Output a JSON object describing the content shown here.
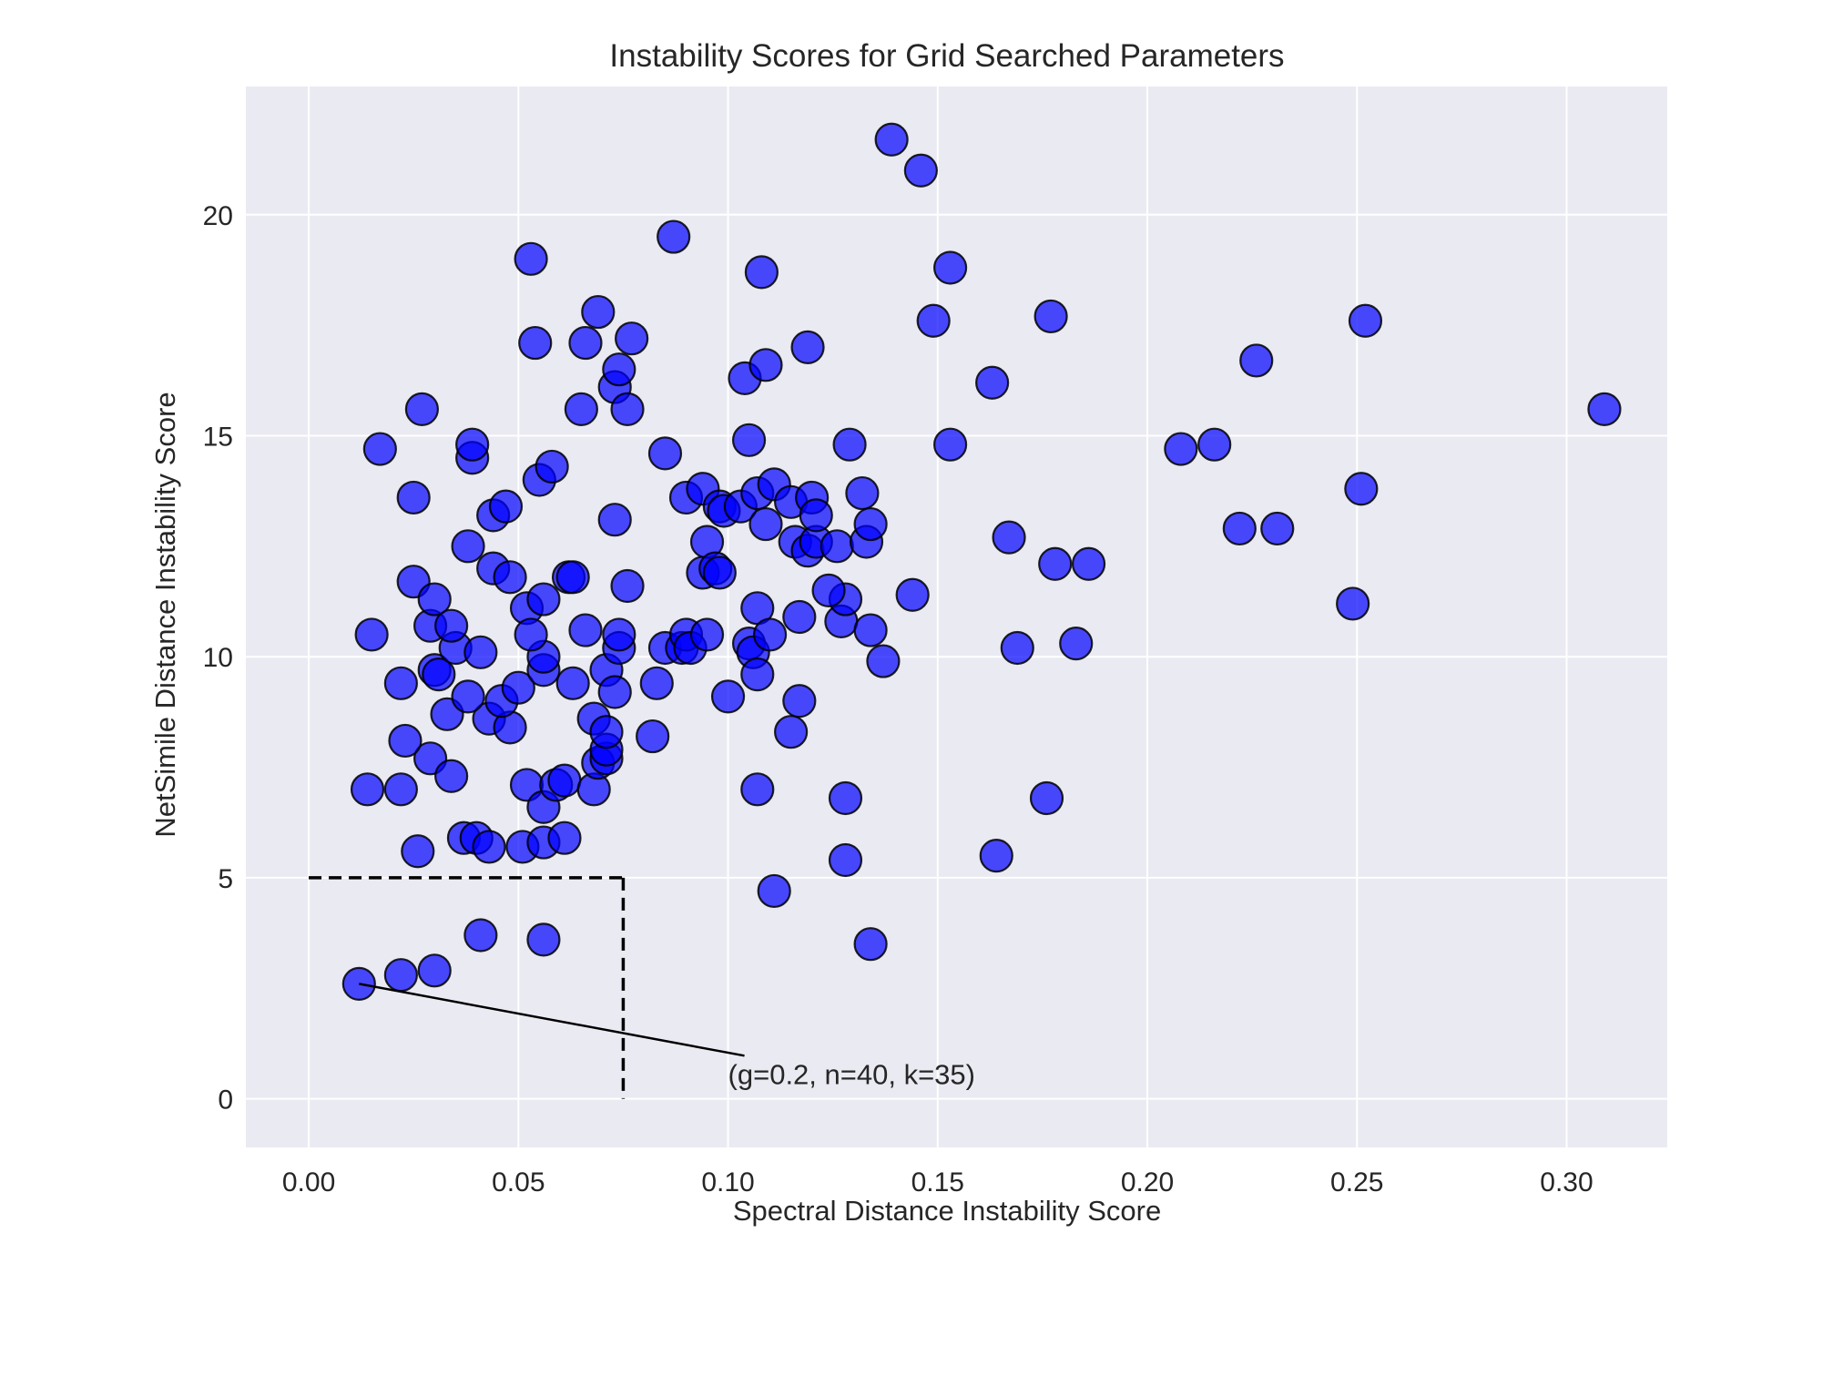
{
  "chart_data": {
    "type": "scatter",
    "title": "Instability Scores for Grid Searched Parameters",
    "xlabel": "Spectral Distance Instability Score",
    "ylabel": "NetSimile Distance Instability Score",
    "xlim": [
      -0.015,
      0.324
    ],
    "ylim": [
      -1.1,
      22.9
    ],
    "xticks": [
      0.0,
      0.05,
      0.1,
      0.15,
      0.2,
      0.25,
      0.3
    ],
    "xtick_labels": [
      "0.00",
      "0.05",
      "0.10",
      "0.15",
      "0.20",
      "0.25",
      "0.30"
    ],
    "yticks": [
      0,
      5,
      10,
      15,
      20
    ],
    "ytick_labels": [
      "0",
      "5",
      "10",
      "15",
      "20"
    ],
    "grid": true,
    "background_color": "#EAEAF2",
    "marker_color": "#0000FF",
    "marker_edge_color": "#000000",
    "threshold_box": {
      "x": 0.075,
      "y": 5
    },
    "annotation": {
      "text": "(g=0.2, n=40, k=35)",
      "point": [
        0.012,
        2.6
      ],
      "text_position": [
        0.1,
        0.5
      ]
    },
    "points": [
      [
        0.012,
        2.6
      ],
      [
        0.022,
        2.8
      ],
      [
        0.03,
        2.9
      ],
      [
        0.041,
        3.7
      ],
      [
        0.056,
        3.6
      ],
      [
        0.134,
        3.5
      ],
      [
        0.111,
        4.7
      ],
      [
        0.128,
        5.4
      ],
      [
        0.164,
        5.5
      ],
      [
        0.026,
        5.6
      ],
      [
        0.037,
        5.9
      ],
      [
        0.04,
        5.9
      ],
      [
        0.043,
        5.7
      ],
      [
        0.051,
        5.7
      ],
      [
        0.056,
        5.8
      ],
      [
        0.061,
        5.9
      ],
      [
        0.014,
        7.0
      ],
      [
        0.022,
        7.0
      ],
      [
        0.029,
        7.7
      ],
      [
        0.034,
        7.3
      ],
      [
        0.052,
        7.1
      ],
      [
        0.056,
        6.6
      ],
      [
        0.059,
        7.1
      ],
      [
        0.061,
        7.2
      ],
      [
        0.068,
        7.0
      ],
      [
        0.069,
        7.6
      ],
      [
        0.071,
        7.7
      ],
      [
        0.071,
        7.9
      ],
      [
        0.107,
        7.0
      ],
      [
        0.128,
        6.8
      ],
      [
        0.176,
        6.8
      ],
      [
        0.023,
        8.1
      ],
      [
        0.033,
        8.7
      ],
      [
        0.043,
        8.6
      ],
      [
        0.048,
        8.4
      ],
      [
        0.068,
        8.6
      ],
      [
        0.071,
        8.3
      ],
      [
        0.082,
        8.2
      ],
      [
        0.115,
        8.3
      ],
      [
        0.117,
        9.0
      ],
      [
        0.015,
        10.5
      ],
      [
        0.022,
        9.4
      ],
      [
        0.03,
        9.7
      ],
      [
        0.031,
        9.6
      ],
      [
        0.035,
        10.2
      ],
      [
        0.038,
        9.1
      ],
      [
        0.041,
        10.1
      ],
      [
        0.046,
        9.0
      ],
      [
        0.05,
        9.3
      ],
      [
        0.056,
        9.7
      ],
      [
        0.056,
        10.0
      ],
      [
        0.063,
        9.4
      ],
      [
        0.071,
        9.7
      ],
      [
        0.073,
        9.2
      ],
      [
        0.074,
        10.2
      ],
      [
        0.083,
        9.4
      ],
      [
        0.025,
        11.7
      ],
      [
        0.029,
        10.7
      ],
      [
        0.03,
        11.3
      ],
      [
        0.034,
        10.7
      ],
      [
        0.052,
        11.1
      ],
      [
        0.053,
        10.5
      ],
      [
        0.056,
        11.3
      ],
      [
        0.062,
        11.8
      ],
      [
        0.063,
        11.8
      ],
      [
        0.066,
        10.6
      ],
      [
        0.074,
        10.5
      ],
      [
        0.076,
        11.6
      ],
      [
        0.085,
        10.2
      ],
      [
        0.089,
        10.2
      ],
      [
        0.09,
        10.5
      ],
      [
        0.091,
        10.2
      ],
      [
        0.095,
        10.5
      ],
      [
        0.1,
        9.1
      ],
      [
        0.105,
        10.3
      ],
      [
        0.106,
        10.1
      ],
      [
        0.107,
        9.6
      ],
      [
        0.107,
        11.1
      ],
      [
        0.11,
        10.5
      ],
      [
        0.117,
        10.9
      ],
      [
        0.127,
        10.8
      ],
      [
        0.128,
        11.3
      ],
      [
        0.134,
        10.6
      ],
      [
        0.137,
        9.9
      ],
      [
        0.169,
        10.2
      ],
      [
        0.183,
        10.3
      ],
      [
        0.038,
        12.5
      ],
      [
        0.044,
        12.0
      ],
      [
        0.048,
        11.8
      ],
      [
        0.094,
        11.9
      ],
      [
        0.095,
        12.6
      ],
      [
        0.097,
        12.0
      ],
      [
        0.098,
        11.9
      ],
      [
        0.116,
        12.6
      ],
      [
        0.119,
        12.4
      ],
      [
        0.121,
        12.6
      ],
      [
        0.124,
        11.5
      ],
      [
        0.126,
        12.5
      ],
      [
        0.133,
        12.6
      ],
      [
        0.144,
        11.4
      ],
      [
        0.167,
        12.7
      ],
      [
        0.178,
        12.1
      ],
      [
        0.186,
        12.1
      ],
      [
        0.222,
        12.9
      ],
      [
        0.231,
        12.9
      ],
      [
        0.249,
        11.2
      ],
      [
        0.025,
        13.6
      ],
      [
        0.044,
        13.2
      ],
      [
        0.047,
        13.4
      ],
      [
        0.073,
        13.1
      ],
      [
        0.09,
        13.6
      ],
      [
        0.094,
        13.8
      ],
      [
        0.098,
        13.4
      ],
      [
        0.099,
        13.3
      ],
      [
        0.103,
        13.4
      ],
      [
        0.107,
        13.7
      ],
      [
        0.109,
        13.0
      ],
      [
        0.111,
        13.9
      ],
      [
        0.115,
        13.5
      ],
      [
        0.12,
        13.6
      ],
      [
        0.121,
        13.2
      ],
      [
        0.132,
        13.7
      ],
      [
        0.134,
        13.0
      ],
      [
        0.017,
        14.7
      ],
      [
        0.039,
        14.5
      ],
      [
        0.039,
        14.8
      ],
      [
        0.055,
        14.0
      ],
      [
        0.058,
        14.3
      ],
      [
        0.085,
        14.6
      ],
      [
        0.105,
        14.9
      ],
      [
        0.129,
        14.8
      ],
      [
        0.153,
        14.8
      ],
      [
        0.208,
        14.7
      ],
      [
        0.216,
        14.8
      ],
      [
        0.251,
        13.8
      ],
      [
        0.027,
        15.6
      ],
      [
        0.065,
        15.6
      ],
      [
        0.073,
        16.1
      ],
      [
        0.074,
        16.5
      ],
      [
        0.076,
        15.6
      ],
      [
        0.104,
        16.3
      ],
      [
        0.109,
        16.6
      ],
      [
        0.119,
        17.0
      ],
      [
        0.163,
        16.2
      ],
      [
        0.226,
        16.7
      ],
      [
        0.309,
        15.6
      ],
      [
        0.054,
        17.1
      ],
      [
        0.066,
        17.1
      ],
      [
        0.069,
        17.8
      ],
      [
        0.077,
        17.2
      ],
      [
        0.149,
        17.6
      ],
      [
        0.177,
        17.7
      ],
      [
        0.252,
        17.6
      ],
      [
        0.053,
        19.0
      ],
      [
        0.087,
        19.5
      ],
      [
        0.108,
        18.7
      ],
      [
        0.153,
        18.8
      ],
      [
        0.139,
        21.7
      ],
      [
        0.146,
        21.0
      ]
    ]
  }
}
